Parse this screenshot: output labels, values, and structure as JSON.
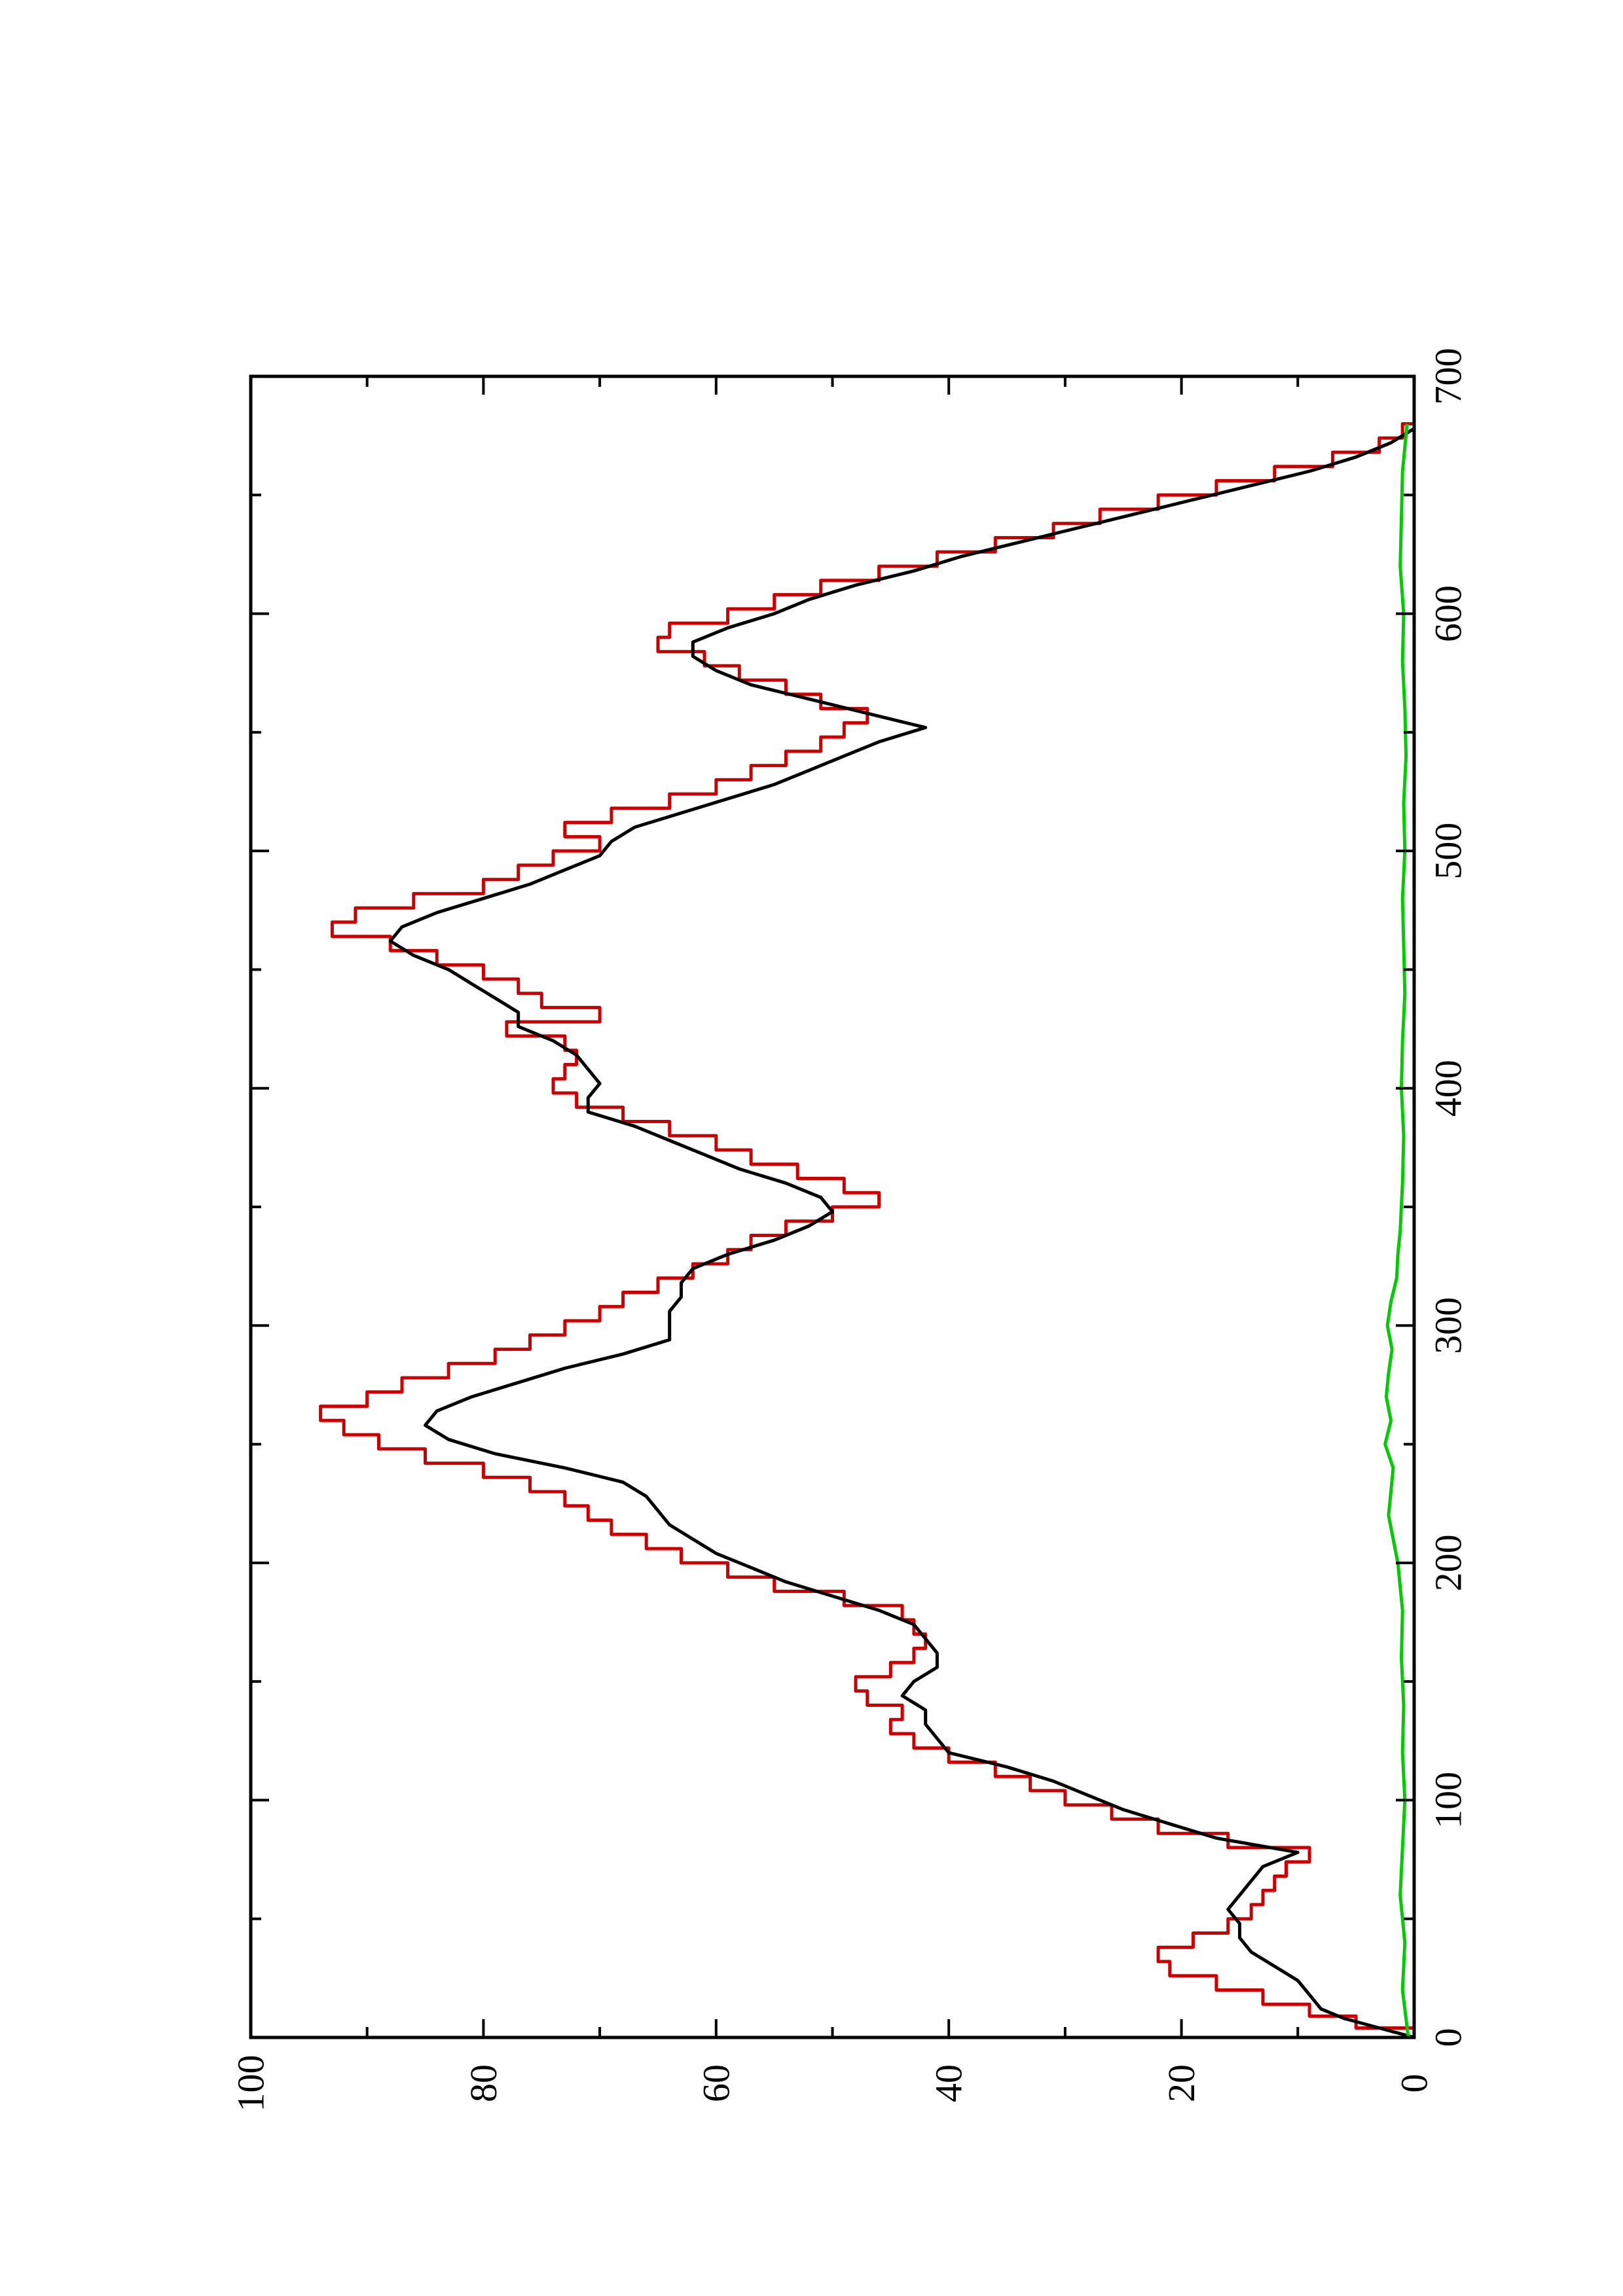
{
  "chart_data": {
    "type": "line",
    "orientation": "rotated-90-ccw",
    "title": "",
    "xlabel": "",
    "ylabel": "",
    "xlim": [
      0,
      700
    ],
    "ylim": [
      0,
      100
    ],
    "x_ticks": [
      0,
      100,
      200,
      300,
      400,
      500,
      600,
      700
    ],
    "y_ticks": [
      0,
      20,
      40,
      60,
      80,
      100
    ],
    "grid": false,
    "legend": "none",
    "series": [
      {
        "color": "#cc0000",
        "style": "step",
        "x": [
          0,
          4,
          9,
          14,
          20,
          26,
          32,
          38,
          44,
          50,
          56,
          62,
          68,
          74,
          80,
          86,
          92,
          98,
          104,
          110,
          116,
          122,
          128,
          134,
          140,
          146,
          152,
          158,
          164,
          170,
          176,
          182,
          188,
          194,
          200,
          206,
          212,
          218,
          224,
          230,
          236,
          242,
          248,
          254,
          260,
          266,
          272,
          278,
          284,
          290,
          296,
          302,
          308,
          314,
          320,
          326,
          332,
          338,
          344,
          350,
          356,
          362,
          368,
          374,
          380,
          386,
          392,
          398,
          404,
          410,
          416,
          422,
          428,
          434,
          440,
          446,
          452,
          458,
          464,
          470,
          476,
          482,
          488,
          494,
          500,
          506,
          512,
          518,
          524,
          530,
          536,
          542,
          548,
          554,
          560,
          566,
          572,
          578,
          584,
          590,
          596,
          602,
          608,
          614,
          620,
          626,
          632,
          638,
          644,
          650,
          656,
          662,
          668,
          674,
          680
        ],
        "y": [
          0,
          5,
          9,
          13,
          17,
          21,
          22,
          19,
          16,
          14,
          13,
          12,
          11,
          9,
          16,
          22,
          26,
          30,
          33,
          36,
          40,
          43,
          45,
          44,
          47,
          48,
          45,
          43,
          42,
          43,
          44,
          49,
          55,
          59,
          63,
          66,
          69,
          71,
          73,
          76,
          80,
          85,
          89,
          92,
          94,
          90,
          87,
          83,
          79,
          76,
          73,
          70,
          68,
          65,
          62,
          59,
          57,
          54,
          50,
          46,
          49,
          53,
          57,
          60,
          64,
          68,
          72,
          74,
          73,
          72,
          73,
          78,
          70,
          75,
          77,
          80,
          84,
          88,
          93,
          91,
          86,
          80,
          77,
          74,
          70,
          73,
          69,
          64,
          60,
          57,
          54,
          51,
          49,
          47,
          51,
          54,
          58,
          61,
          65,
          64,
          59,
          55,
          51,
          46,
          41,
          36,
          31,
          27,
          22,
          17,
          12,
          7,
          3,
          1,
          0
        ]
      },
      {
        "color": "#000000",
        "style": "line",
        "x": [
          0,
          4,
          8,
          12,
          18,
          24,
          30,
          36,
          42,
          48,
          54,
          60,
          66,
          72,
          78,
          84,
          90,
          96,
          102,
          108,
          114,
          120,
          126,
          132,
          138,
          144,
          150,
          156,
          162,
          168,
          174,
          180,
          186,
          192,
          198,
          204,
          210,
          216,
          222,
          228,
          234,
          240,
          246,
          252,
          258,
          264,
          270,
          276,
          282,
          288,
          294,
          300,
          306,
          312,
          318,
          324,
          330,
          336,
          342,
          348,
          354,
          360,
          366,
          372,
          378,
          384,
          390,
          396,
          402,
          408,
          414,
          420,
          426,
          432,
          438,
          444,
          450,
          456,
          462,
          468,
          474,
          480,
          486,
          492,
          498,
          504,
          510,
          516,
          522,
          528,
          534,
          540,
          546,
          552,
          558,
          564,
          570,
          576,
          582,
          588,
          594,
          600,
          606,
          612,
          618,
          624,
          630,
          636,
          642,
          648,
          654,
          660,
          666,
          672,
          678,
          684
        ],
        "y": [
          0,
          3,
          6,
          8,
          9,
          10,
          12,
          14,
          15,
          15,
          16,
          15,
          14,
          13,
          10,
          17,
          21,
          25,
          28,
          31,
          35,
          40,
          41,
          42,
          42,
          44,
          43,
          41,
          41,
          42,
          43,
          46,
          50,
          54,
          57,
          60,
          62,
          64,
          65,
          66,
          68,
          73,
          79,
          83,
          85,
          84,
          81,
          77,
          73,
          68,
          64,
          64,
          64,
          63,
          63,
          62,
          59,
          55,
          52,
          50,
          51,
          54,
          58,
          61,
          64,
          67,
          71,
          71,
          70,
          71,
          72,
          74,
          77,
          77,
          79,
          81,
          83,
          86,
          88,
          87,
          84,
          80,
          76,
          73,
          70,
          69,
          67,
          63,
          59,
          55,
          52,
          49,
          46,
          42,
          47,
          52,
          57,
          60,
          62,
          62,
          59,
          55,
          52,
          48,
          43,
          39,
          34,
          29,
          24,
          19,
          14,
          9,
          5,
          2,
          0,
          0
        ]
      },
      {
        "color": "#00cc00",
        "style": "line",
        "x": [
          0,
          20,
          40,
          60,
          80,
          100,
          120,
          140,
          160,
          180,
          200,
          210,
          220,
          230,
          240,
          250,
          260,
          270,
          280,
          290,
          300,
          310,
          320,
          330,
          340,
          360,
          380,
          400,
          420,
          440,
          460,
          480,
          500,
          520,
          540,
          560,
          580,
          600,
          620,
          640,
          660,
          680
        ],
        "y": [
          0.5,
          1.0,
          0.8,
          1.2,
          1.0,
          0.8,
          1.0,
          0.9,
          1.1,
          1.0,
          1.4,
          1.8,
          2.2,
          2.0,
          1.8,
          2.5,
          2.0,
          2.4,
          2.2,
          1.9,
          2.3,
          2.0,
          1.5,
          1.4,
          1.2,
          1.0,
          0.9,
          1.1,
          1.0,
          0.8,
          0.9,
          1.0,
          0.8,
          0.9,
          0.7,
          0.8,
          1.0,
          0.9,
          1.2,
          1.1,
          1.0,
          0.6
        ]
      }
    ]
  }
}
